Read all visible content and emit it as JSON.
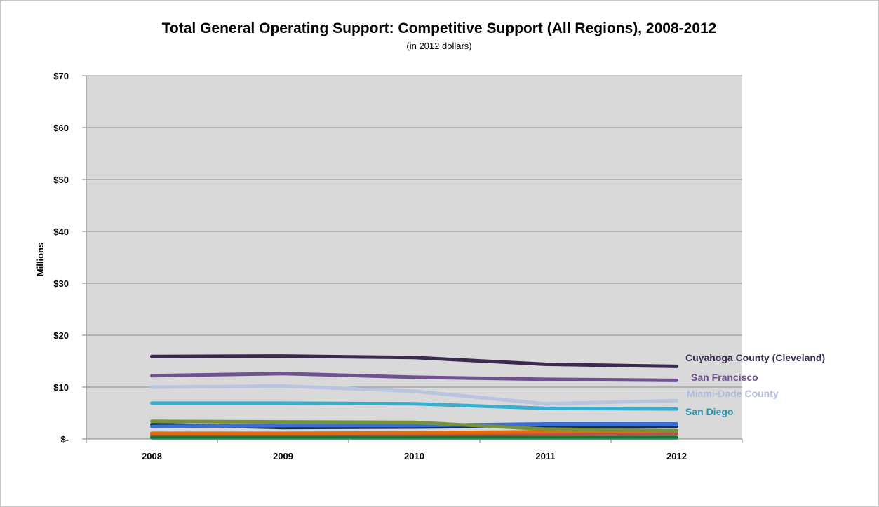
{
  "chart_data": {
    "type": "line",
    "title": "Total General Operating Support: Competitive Support (All Regions), 2008-2012",
    "subtitle": "(in 2012 dollars)",
    "xlabel": "",
    "ylabel": "Millions",
    "x": [
      "2008",
      "2009",
      "2010",
      "2011",
      "2012"
    ],
    "y_ticks": [
      0,
      10,
      20,
      30,
      40,
      50,
      60,
      70
    ],
    "y_tick_labels": [
      "$-",
      "$10",
      "$20",
      "$30",
      "$40",
      "$50",
      "$60",
      "$70"
    ],
    "ylim": [
      0,
      70
    ],
    "grid": true,
    "legend": "none",
    "series": [
      {
        "name": "Cuyahoga County (Cleveland)",
        "values": [
          15.9,
          16.0,
          15.7,
          14.4,
          14.0
        ],
        "color": "#3b2a4f",
        "label_color": "#3b2a4f"
      },
      {
        "name": "San Francisco",
        "values": [
          12.2,
          12.6,
          11.9,
          11.5,
          11.3
        ],
        "color": "#6f5390",
        "label_color": "#6f5390"
      },
      {
        "name": "Miami-Dade County",
        "values": [
          10.0,
          10.2,
          9.2,
          6.8,
          7.4
        ],
        "color": "#b8c4e0",
        "label_color": "#b0bde0"
      },
      {
        "name": "San Diego",
        "values": [
          6.9,
          6.9,
          6.8,
          5.9,
          5.8
        ],
        "color": "#3aaccd",
        "label_color": "#2994b0"
      },
      {
        "values": [
          3.4,
          3.3,
          3.2,
          1.9,
          1.6
        ],
        "color": "#76923c"
      },
      {
        "values": [
          2.4,
          2.6,
          2.6,
          2.9,
          2.9
        ],
        "color": "#3b6fd6"
      },
      {
        "values": [
          2.8,
          2.2,
          2.3,
          2.5,
          2.4
        ],
        "color": "#16305e"
      },
      {
        "values": [
          1.1,
          1.1,
          1.2,
          1.4,
          1.6
        ],
        "color": "#e46c0a"
      },
      {
        "values": [
          0.9,
          0.9,
          0.9,
          1.0,
          1.1
        ],
        "color": "#c0504d"
      },
      {
        "values": [
          0.4,
          0.4,
          0.4,
          0.3,
          0.3
        ],
        "color": "#0e7a2a"
      },
      {
        "values": [
          0.2,
          0.2,
          0.2,
          0.2,
          0.2
        ],
        "color": "#2aa5b0"
      }
    ]
  }
}
